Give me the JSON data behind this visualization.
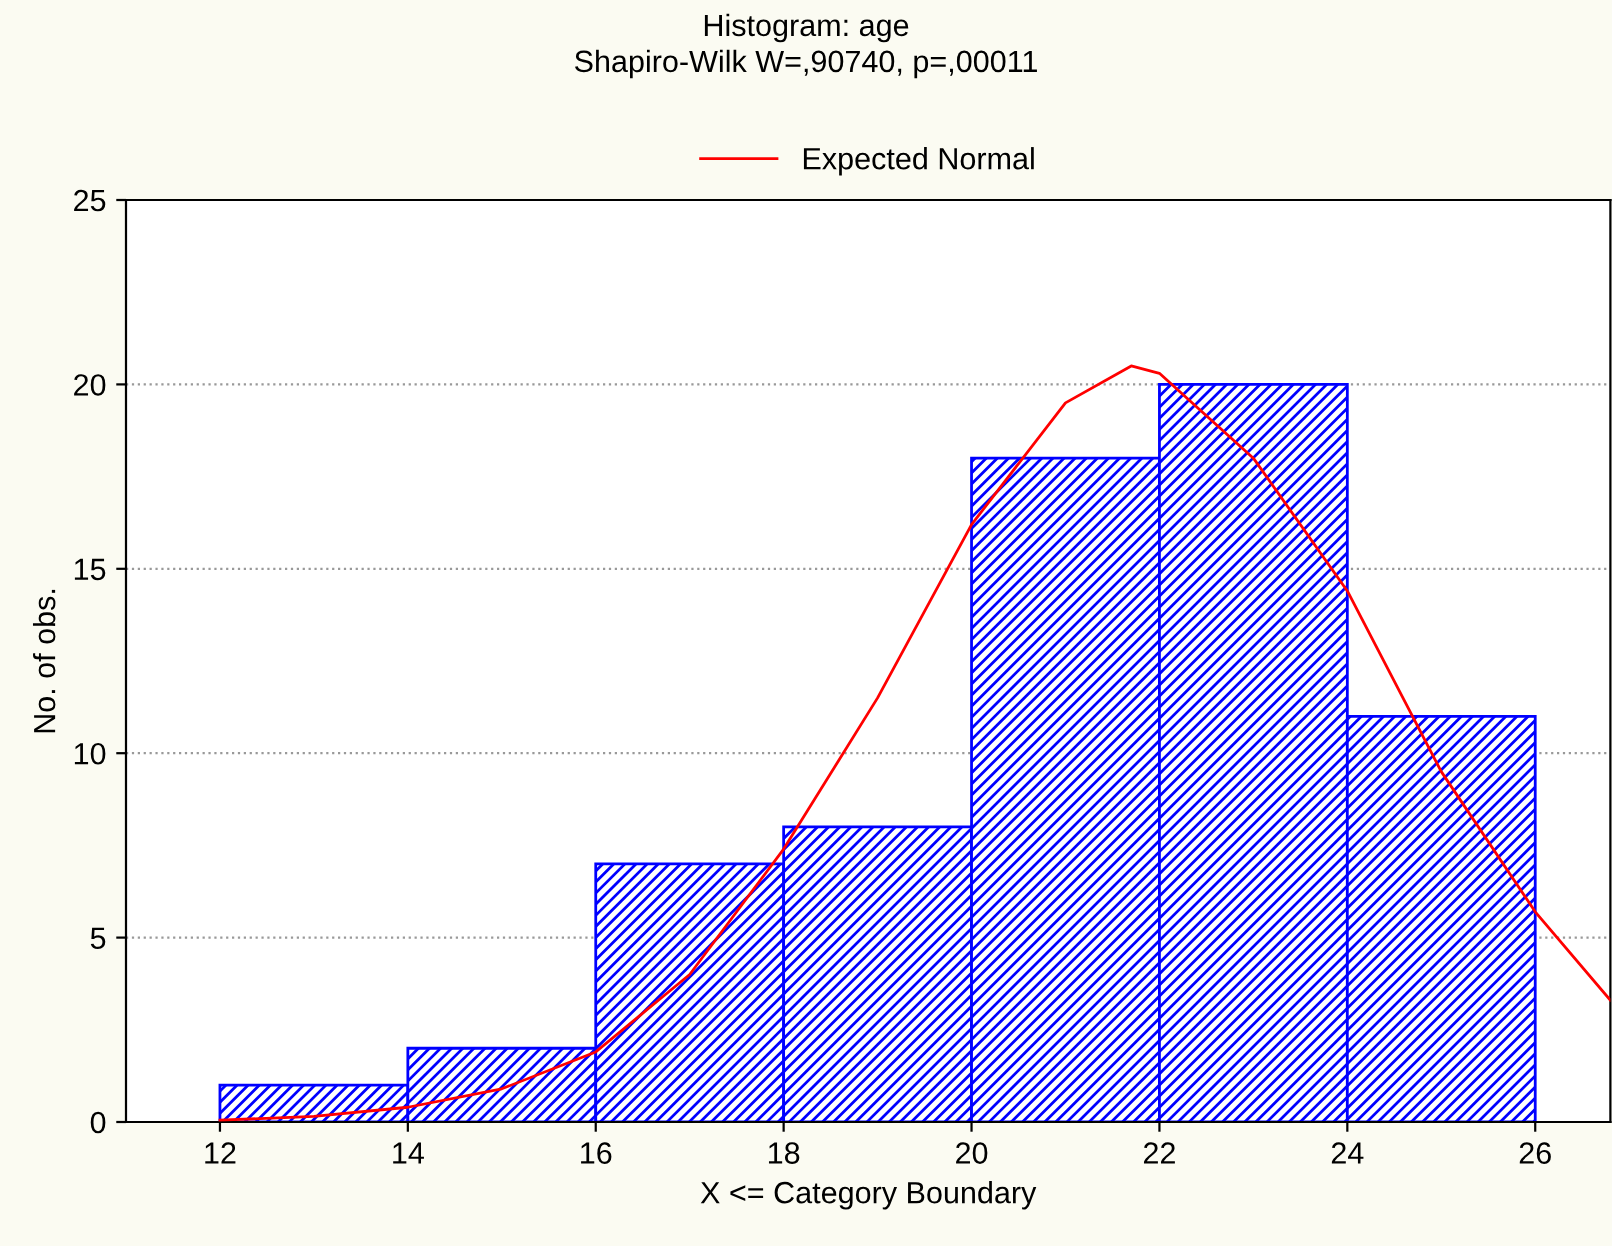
{
  "chart_data": {
    "type": "histogram",
    "title": "Histogram: age",
    "subtitle": "Shapiro-Wilk W=,90740, p=,00011",
    "xlabel": "X <= Category Boundary",
    "ylabel": "No. of obs.",
    "bins": [
      12,
      14,
      16,
      18,
      20,
      22,
      24,
      26
    ],
    "values": [
      1,
      2,
      7,
      8,
      18,
      20,
      11
    ],
    "color": "#0000ff",
    "series": [
      {
        "type": "line",
        "name": "Expected Normal",
        "color": "#ff0000",
        "x": [
          12,
          13,
          14,
          15,
          16,
          17,
          18,
          19,
          20,
          21,
          21.7,
          22,
          23,
          24,
          25,
          26,
          26.8
        ],
        "values": [
          0.05,
          0.15,
          0.4,
          0.9,
          1.9,
          4,
          7.4,
          11.5,
          16.2,
          19.5,
          20.5,
          20.3,
          18,
          14.4,
          9.5,
          5.7,
          3.3
        ]
      }
    ],
    "xlim": [
      11,
      26.8
    ],
    "xticks": [
      12,
      14,
      16,
      18,
      20,
      22,
      24,
      26
    ],
    "ylim": [
      0,
      25
    ],
    "yticks": [
      0,
      5,
      10,
      15,
      20,
      25
    ],
    "grid": "y",
    "legend": "top"
  }
}
